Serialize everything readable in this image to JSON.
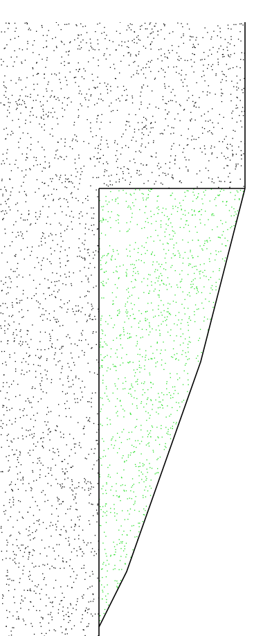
{
  "diagram": {
    "regions": [
      {
        "name": "upper-soil-region",
        "fill_pattern": "stipple",
        "dot_color": "#000000"
      },
      {
        "name": "wedge-region",
        "fill_pattern": "stipple",
        "dot_color": "#22dd22"
      }
    ],
    "outline_color": "#000000",
    "background_color": "#ffffff"
  }
}
